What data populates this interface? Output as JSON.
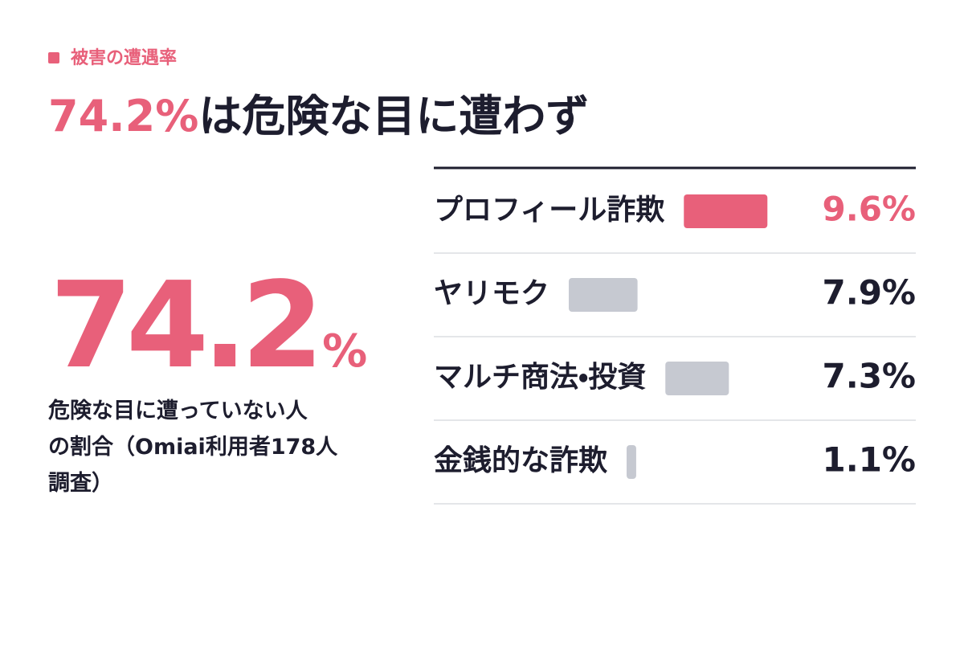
{
  "header": {
    "tag": "被害の遭遇率",
    "headline_value": "74.2%",
    "headline_text": "は危険な目に遭わず"
  },
  "stat": {
    "value": "74.2",
    "unit": "%",
    "description": [
      "危険な目に遭っていない人",
      "の割合（Omiai利用者178人",
      "調査）"
    ]
  },
  "chart_data": {
    "type": "bar",
    "orientation": "horizontal",
    "categories": [
      "プロフィール詐欺",
      "ヤリモク",
      "マルチ商法・投資",
      "金銭的な詐欺"
    ],
    "values": [
      9.6,
      7.9,
      7.3,
      1.1
    ],
    "value_labels": [
      "9.6%",
      "7.9%",
      "7.3%",
      "1.1%"
    ],
    "colors": [
      "#e8607a",
      "#c6c9d1",
      "#c6c9d1",
      "#c6c9d1"
    ],
    "value_label_colors": [
      "#e8607a",
      "#1d1d2e",
      "#1d1d2e",
      "#1d1d2e"
    ]
  }
}
